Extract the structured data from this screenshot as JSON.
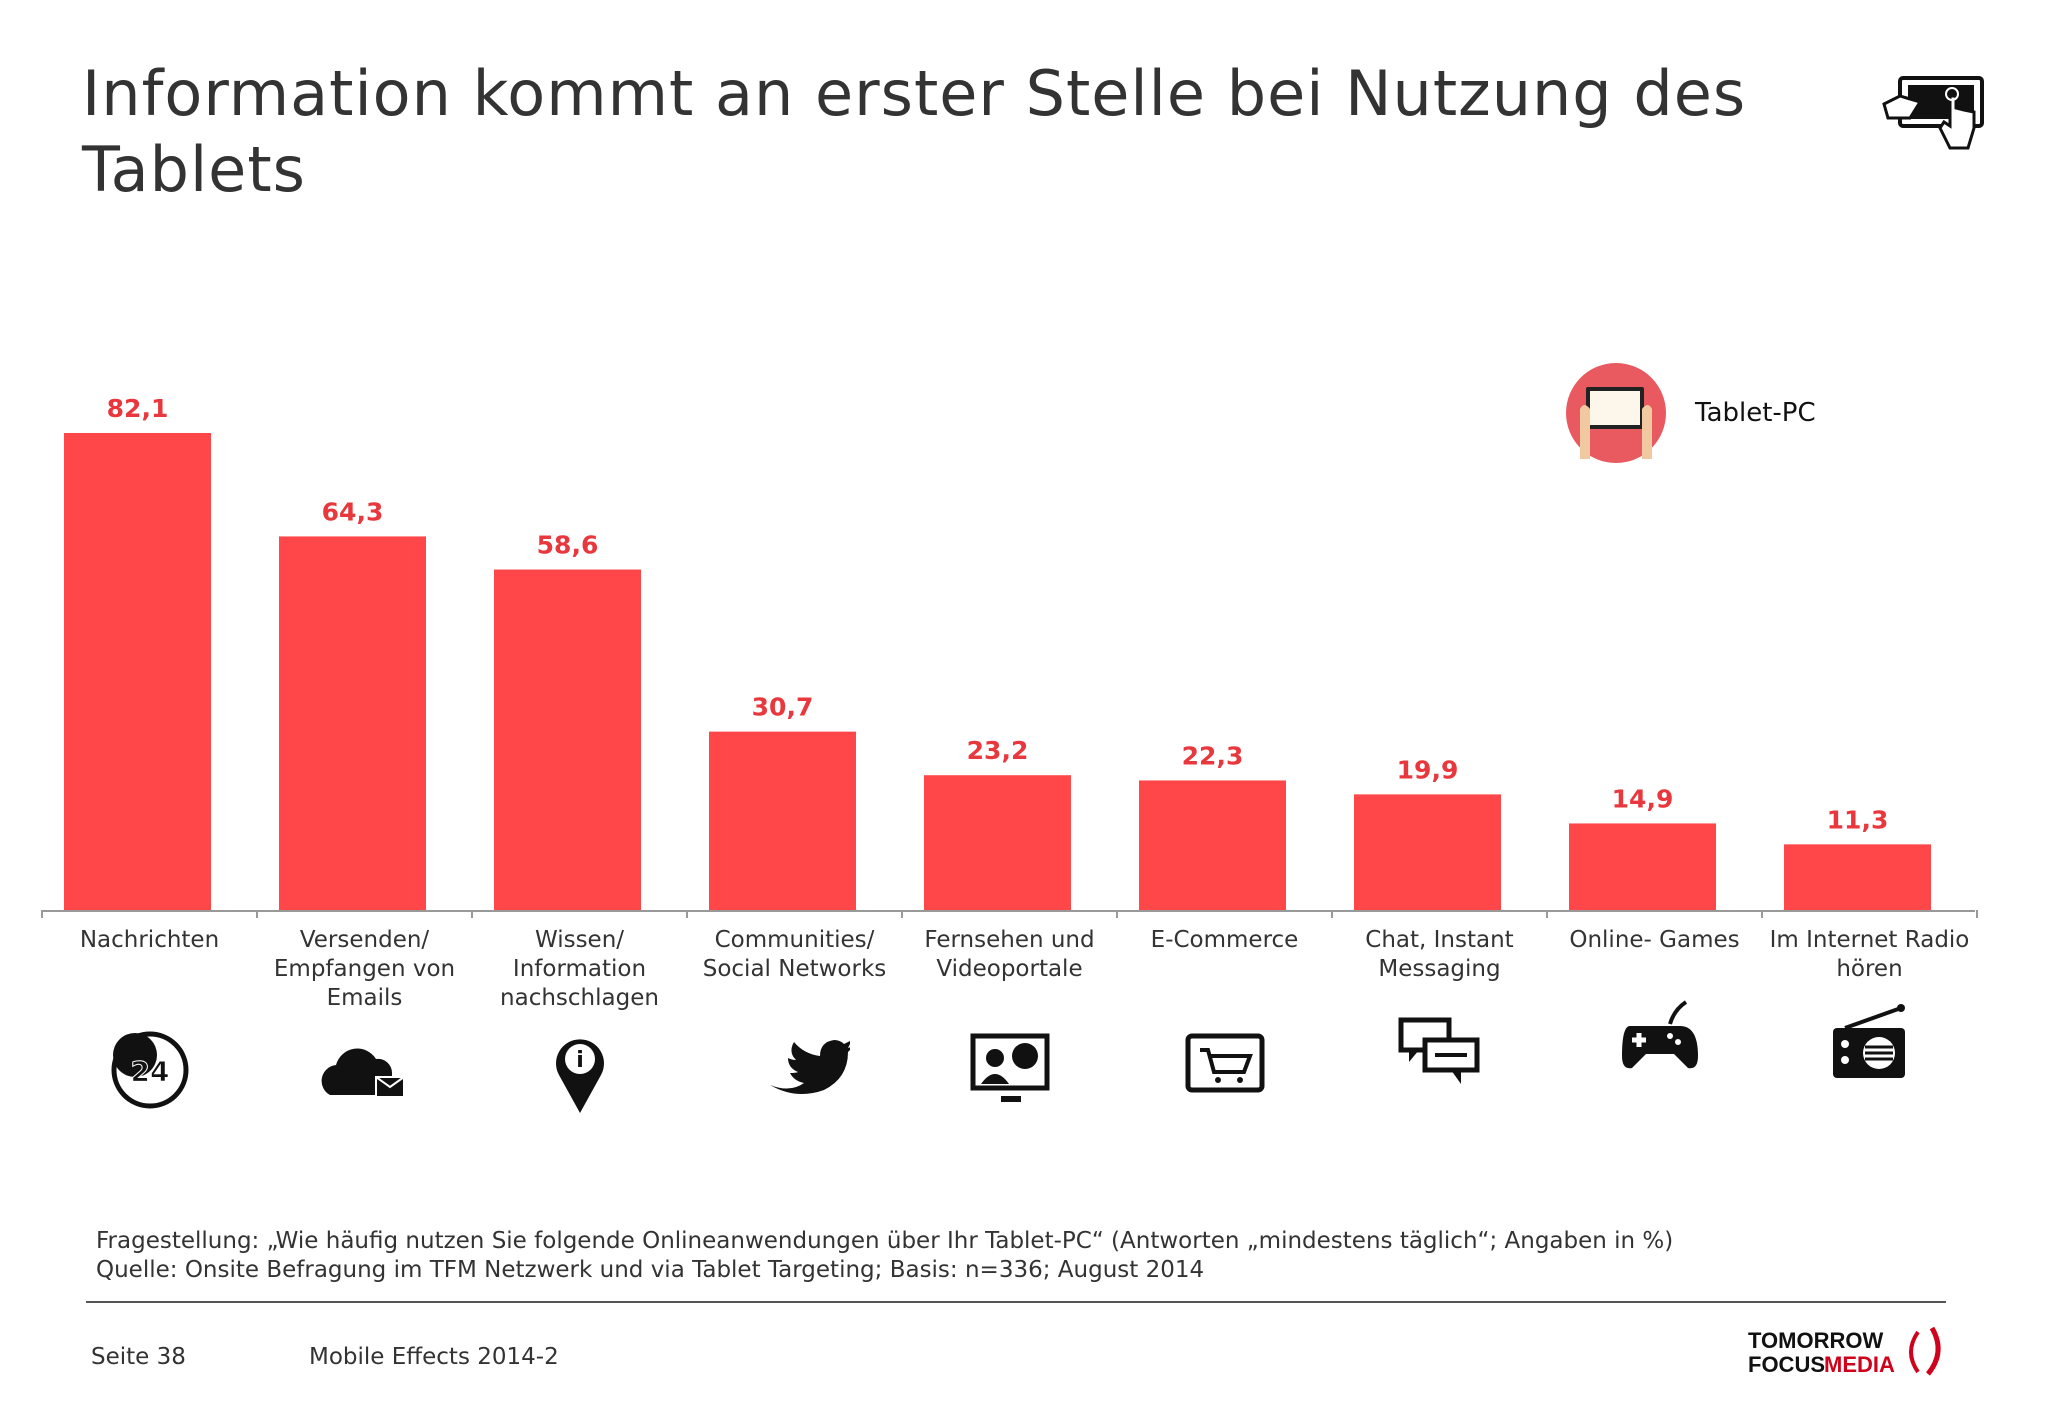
{
  "title": "Information kommt an erster Stelle bei Nutzung des Tablets",
  "header_icon": "tablet-touch-icon",
  "legend": {
    "label": "Tablet-PC",
    "icon": "tablet-in-hands-icon",
    "color": "#e85a5f"
  },
  "chart_data": {
    "type": "bar",
    "categories": [
      "Nachrichten",
      "Versenden/ Empfangen von Emails",
      "Wissen/ Information nachschlagen",
      "Communities/ Social Networks",
      "Fernsehen und Videoportale",
      "E-Commerce",
      "Chat, Instant Messaging",
      "Online- Games",
      "Im Internet Radio hören"
    ],
    "series": [
      {
        "name": "Tablet-PC",
        "values": [
          82.1,
          64.3,
          58.6,
          30.7,
          23.2,
          22.3,
          19.9,
          14.9,
          11.3
        ]
      }
    ],
    "data_labels": [
      "82,1",
      "64,3",
      "58,6",
      "30,7",
      "23,2",
      "22,3",
      "19,9",
      "14,9",
      "11,3"
    ],
    "ylim": [
      0,
      100
    ],
    "grid": false,
    "bar_color": "#ff474a",
    "label_color": "#e8383d",
    "category_icons": [
      "clock-24-globe-icon",
      "cloud-mail-icon",
      "info-pin-icon",
      "twitter-bird-icon",
      "video-screen-icon",
      "shopping-cart-screen-icon",
      "chat-bubbles-icon",
      "gamepad-icon",
      "radio-icon"
    ]
  },
  "notes": {
    "question": "Fragestellung: „Wie häufig nutzen Sie folgende Onlineanwendungen über Ihr Tablet-PC“ (Antworten „mindestens täglich“; Angaben in %)",
    "source": "Quelle: Onsite Befragung im TFM Netzwerk und via Tablet Targeting; Basis: n=336; August 2014"
  },
  "footer": {
    "page": "Seite 38",
    "publication": "Mobile Effects 2014-2",
    "logo_line1": "TOMORROW",
    "logo_line2a": "FOCUS",
    "logo_line2b": "MEDIA"
  }
}
